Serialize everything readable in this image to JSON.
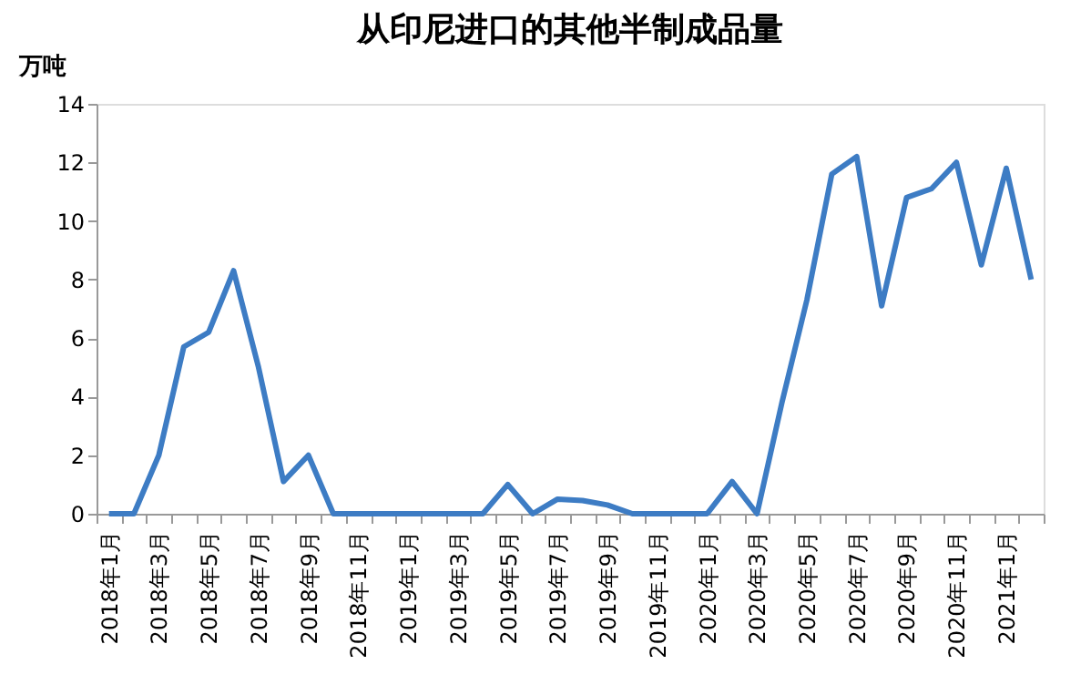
{
  "chart_data": {
    "type": "line",
    "title": "从印尼进口的其他半制成品量",
    "ylabel": "万吨",
    "categories": [
      "2018年1月",
      null,
      "2018年3月",
      null,
      "2018年5月",
      null,
      "2018年7月",
      null,
      "2018年9月",
      null,
      "2018年11月",
      null,
      "2019年1月",
      null,
      "2019年3月",
      null,
      "2019年5月",
      null,
      "2019年7月",
      null,
      "2019年9月",
      null,
      "2019年11月",
      null,
      "2020年1月",
      null,
      "2020年3月",
      null,
      "2020年5月",
      null,
      "2020年7月",
      null,
      "2020年9月",
      null,
      "2020年11月",
      null,
      "2021年1月",
      null
    ],
    "series": [
      {
        "color": "#3d7cc4",
        "values": [
          0,
          0,
          2.0,
          5.7,
          6.2,
          8.3,
          5.0,
          1.1,
          2.0,
          0,
          0,
          0,
          0,
          0,
          0,
          0,
          1.0,
          0,
          0.5,
          0.45,
          0.3,
          0,
          0,
          0,
          0,
          1.1,
          0,
          3.8,
          7.3,
          11.6,
          12.2,
          7.1,
          10.8,
          11.1,
          12.0,
          8.5,
          11.8,
          8.0
        ]
      }
    ],
    "ylim": [
      0,
      14
    ],
    "yticks": [
      0,
      2,
      4,
      6,
      8,
      10,
      12,
      14
    ],
    "grid": false,
    "legend": false,
    "marker": "none",
    "line_style": "solid"
  }
}
